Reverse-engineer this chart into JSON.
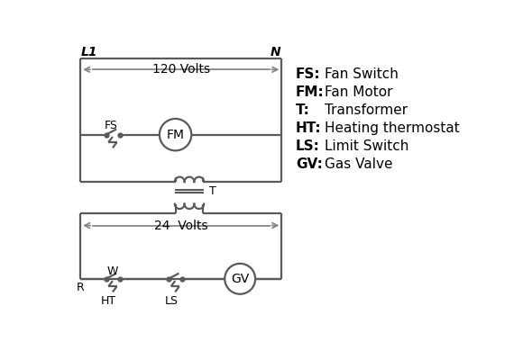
{
  "background_color": "#ffffff",
  "line_color": "#5a5a5a",
  "arrow_color": "#888888",
  "text_color": "#000000",
  "legend_items": [
    [
      "FS:",
      "Fan Switch"
    ],
    [
      "FM:",
      "Fan Motor"
    ],
    [
      "T:",
      "Transformer"
    ],
    [
      "HT:",
      "Heating thermostat"
    ],
    [
      "LS:",
      "Limit Switch"
    ],
    [
      "GV:",
      "Gas Valve"
    ]
  ],
  "L1_label": "L1",
  "N_label": "N",
  "volts120_label": "120 Volts",
  "volts24_label": "24  Volts",
  "FS_label": "FS",
  "FM_label": "FM",
  "T_label": "T",
  "R_label": "R",
  "W_label": "W",
  "HT_label": "HT",
  "LS_label": "LS",
  "GV_label": "GV"
}
